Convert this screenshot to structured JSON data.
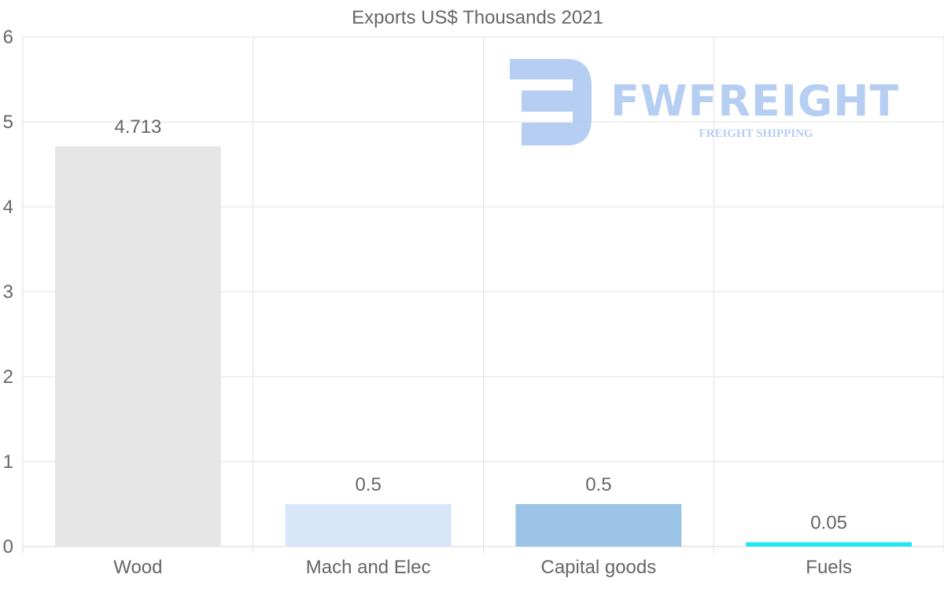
{
  "chart_data": {
    "type": "bar",
    "title": "Exports US$ Thousands 2021",
    "categories": [
      "Wood",
      "Mach and Elec",
      "Capital goods",
      "Fuels"
    ],
    "values": [
      4.713,
      0.5,
      0.5,
      0.05
    ],
    "value_labels": [
      "4.713",
      "0.5",
      "0.5",
      "0.05"
    ],
    "bar_colors": [
      "#e6e6e6",
      "#d7e6f8",
      "#9ac3e5",
      "#1fe6f0"
    ],
    "ylim": [
      0,
      6
    ],
    "yticks": [
      "0",
      "1",
      "2",
      "3",
      "4",
      "5",
      "6"
    ],
    "xlabel": "",
    "ylabel": "",
    "grid": true,
    "legend": "none"
  },
  "watermark": {
    "brand": "FWFREIGHT",
    "tagline": "FREIGHT SHIPPING",
    "color": "#a9c6f0"
  }
}
